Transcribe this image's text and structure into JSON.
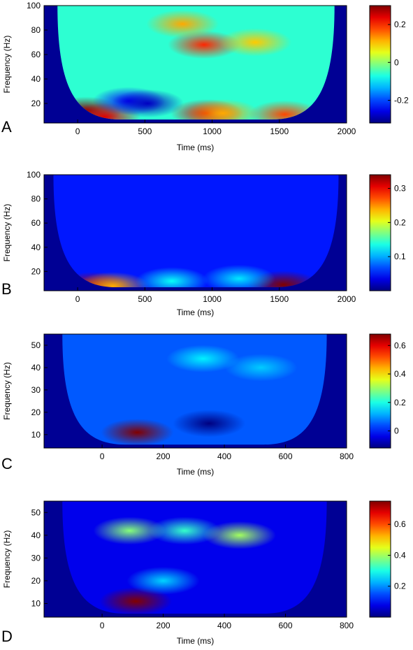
{
  "chart_data": [
    {
      "type": "heatmap",
      "panel_label": "A",
      "xlabel": "Time (ms)",
      "ylabel": "Frequency (Hz)",
      "xlim": [
        -250,
        2000
      ],
      "ylim": [
        4,
        100
      ],
      "xticks": [
        0,
        500,
        1000,
        1500,
        2000
      ],
      "yticks": [
        20,
        40,
        60,
        80,
        100
      ],
      "colorbar": {
        "ticks": [
          0.2,
          0,
          -0.2
        ],
        "range": [
          -0.32,
          0.3
        ]
      },
      "cone": {
        "t_start": -150,
        "t_end": 1910
      },
      "background_value": -0.06,
      "blobs": [
        {
          "t": 60,
          "f": 14,
          "value": 0.3
        },
        {
          "t": 200,
          "f": 9,
          "value": 0.24
        },
        {
          "t": 380,
          "f": 22,
          "value": -0.24
        },
        {
          "t": 520,
          "f": 20,
          "value": -0.28
        },
        {
          "t": 960,
          "f": 12,
          "value": 0.24
        },
        {
          "t": 1080,
          "f": 12,
          "value": 0.12
        },
        {
          "t": 1540,
          "f": 11,
          "value": 0.18
        },
        {
          "t": 940,
          "f": 68,
          "value": 0.2
        },
        {
          "t": 780,
          "f": 85,
          "value": 0.12
        },
        {
          "t": 1320,
          "f": 70,
          "value": 0.1
        }
      ]
    },
    {
      "type": "heatmap",
      "panel_label": "B",
      "xlabel": "Time (ms)",
      "ylabel": "Frequency (Hz)",
      "xlim": [
        -250,
        2000
      ],
      "ylim": [
        4,
        100
      ],
      "xticks": [
        0,
        500,
        1000,
        1500,
        2000
      ],
      "yticks": [
        20,
        40,
        60,
        80,
        100
      ],
      "colorbar": {
        "ticks": [
          0.3,
          0.2,
          0.1
        ],
        "range": [
          0.0,
          0.34
        ]
      },
      "cone": {
        "t_start": -180,
        "t_end": 1940
      },
      "background_value": 0.05,
      "blobs": [
        {
          "t": 120,
          "f": 8,
          "value": 0.32
        },
        {
          "t": 260,
          "f": 8,
          "value": 0.24
        },
        {
          "t": 1530,
          "f": 9,
          "value": 0.34
        },
        {
          "t": 700,
          "f": 12,
          "value": 0.13
        },
        {
          "t": 1200,
          "f": 14,
          "value": 0.12
        }
      ]
    },
    {
      "type": "heatmap",
      "panel_label": "C",
      "xlabel": "Time (ms)",
      "ylabel": "Frequency (Hz)",
      "xlim": [
        -190,
        800
      ],
      "ylim": [
        4,
        55
      ],
      "xticks": [
        0,
        200,
        400,
        600,
        800
      ],
      "yticks": [
        10,
        20,
        30,
        40,
        50
      ],
      "colorbar": {
        "ticks": [
          0.6,
          0.4,
          0.2,
          0
        ],
        "range": [
          -0.12,
          0.68
        ]
      },
      "cone": {
        "t_start": -130,
        "t_end": 735
      },
      "background_value": 0.05,
      "blobs": [
        {
          "t": 115,
          "f": 11,
          "value": 0.68
        },
        {
          "t": 350,
          "f": 15,
          "value": -0.12
        },
        {
          "t": 330,
          "f": 44,
          "value": 0.17
        },
        {
          "t": 520,
          "f": 40,
          "value": 0.14
        }
      ]
    },
    {
      "type": "heatmap",
      "panel_label": "D",
      "xlabel": "Time (ms)",
      "ylabel": "Frequency (Hz)",
      "xlim": [
        -190,
        800
      ],
      "ylim": [
        4,
        55
      ],
      "xticks": [
        0,
        200,
        400,
        600,
        800
      ],
      "yticks": [
        10,
        20,
        30,
        40,
        50
      ],
      "colorbar": {
        "ticks": [
          0.6,
          0.4,
          0.2
        ],
        "range": [
          0.0,
          0.75
        ]
      },
      "cone": {
        "t_start": -130,
        "t_end": 735
      },
      "background_value": 0.08,
      "blobs": [
        {
          "t": 110,
          "f": 11,
          "value": 0.75
        },
        {
          "t": 90,
          "f": 42,
          "value": 0.38
        },
        {
          "t": 270,
          "f": 42,
          "value": 0.32
        },
        {
          "t": 450,
          "f": 40,
          "value": 0.4
        },
        {
          "t": 200,
          "f": 20,
          "value": 0.25
        }
      ]
    }
  ]
}
